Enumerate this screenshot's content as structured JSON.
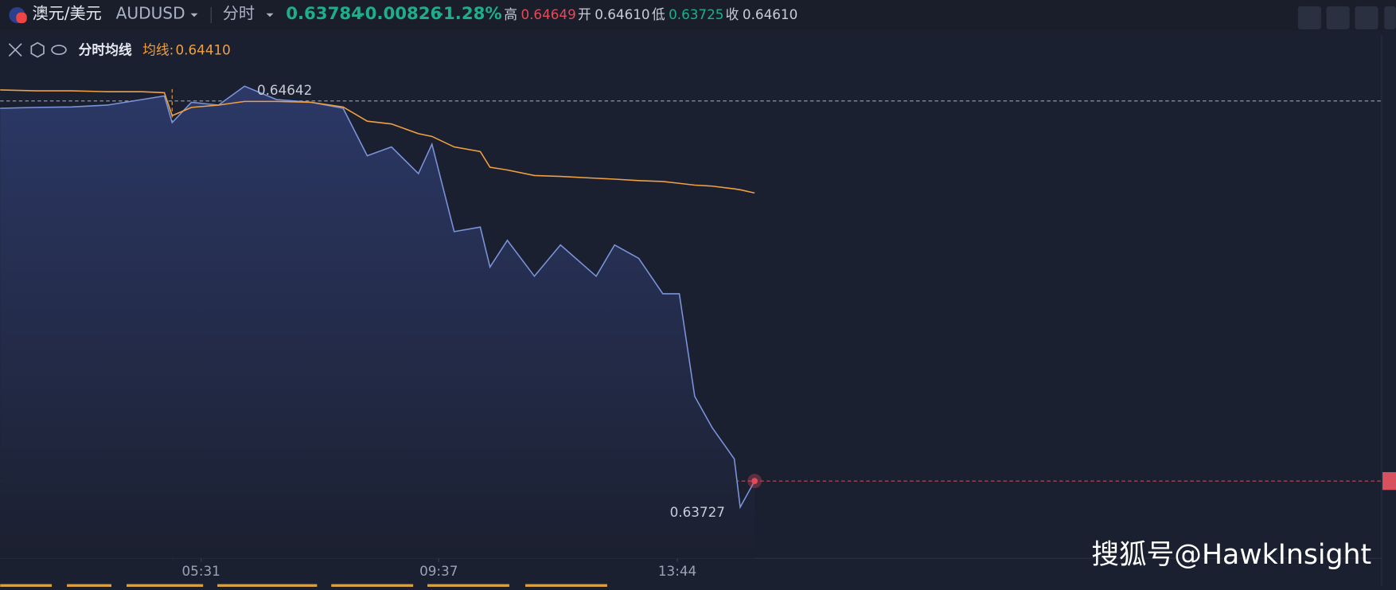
{
  "header": {
    "symbol": "澳元/美元",
    "code": "AUDUSD",
    "mode": "分时",
    "price": "0.63784",
    "change": "-0.00826",
    "change_pct": "-1.28%",
    "high_label": "高",
    "high": "0.64649",
    "open_label": "开",
    "open": "0.64610",
    "low_label": "低",
    "low": "0.63725",
    "close_label": "收",
    "close": "0.64610"
  },
  "indicator": {
    "name": "分时均线",
    "label": "均线:",
    "value": "0.64410"
  },
  "watermark": "搜狐号@HawkInsight",
  "chart_data": {
    "type": "line",
    "x": [
      123,
      160,
      197,
      234,
      270,
      293,
      301,
      321,
      349,
      376,
      409,
      445,
      478,
      503,
      528,
      556,
      570,
      593,
      620,
      630,
      648,
      676,
      703,
      740,
      759,
      784,
      809,
      826,
      842,
      860,
      883,
      889,
      904
    ],
    "series": [
      {
        "color": "#7b93d9",
        "values": [
          0.64594,
          0.64596,
          0.64597,
          0.64601,
          0.64613,
          0.64621,
          0.64563,
          0.64607,
          0.64601,
          0.64642,
          0.64613,
          0.64607,
          0.64594,
          0.64491,
          0.6451,
          0.64452,
          0.64516,
          0.64326,
          0.64336,
          0.64249,
          0.64307,
          0.64229,
          0.64297,
          0.64229,
          0.64297,
          0.64268,
          0.64191,
          0.64191,
          0.63968,
          0.639,
          0.63832,
          0.63727,
          0.63784
        ]
      },
      {
        "color": "#f0a040",
        "values": [
          0.64634,
          0.64632,
          0.64632,
          0.6463,
          0.6463,
          0.64628,
          0.64578,
          0.64596,
          0.64601,
          0.64609,
          0.64609,
          0.64607,
          0.64597,
          0.64566,
          0.6456,
          0.64539,
          0.64533,
          0.6451,
          0.645,
          0.64466,
          0.6446,
          0.64448,
          0.64446,
          0.64442,
          0.6444,
          0.64437,
          0.64435,
          0.64431,
          0.64427,
          0.64425,
          0.64419,
          0.64417,
          0.6441
        ]
      }
    ],
    "xlim": [
      123,
      1553
    ],
    "xticks": [
      {
        "value": 331,
        "label": "05:31"
      },
      {
        "value": 577,
        "label": "09:37"
      },
      {
        "value": 824,
        "label": "13:44"
      }
    ],
    "ylim": [
      0.63616,
      0.64752
    ],
    "annotations": [
      {
        "index": 9,
        "text": "0.64642"
      },
      {
        "index": 31,
        "text": "0.63727"
      }
    ],
    "reference_lines": [
      {
        "value": 0.6461,
        "color": "#9aa3b5"
      },
      {
        "value": 0.63784,
        "color": "#d9505e"
      }
    ],
    "crosshair_index": 6
  }
}
